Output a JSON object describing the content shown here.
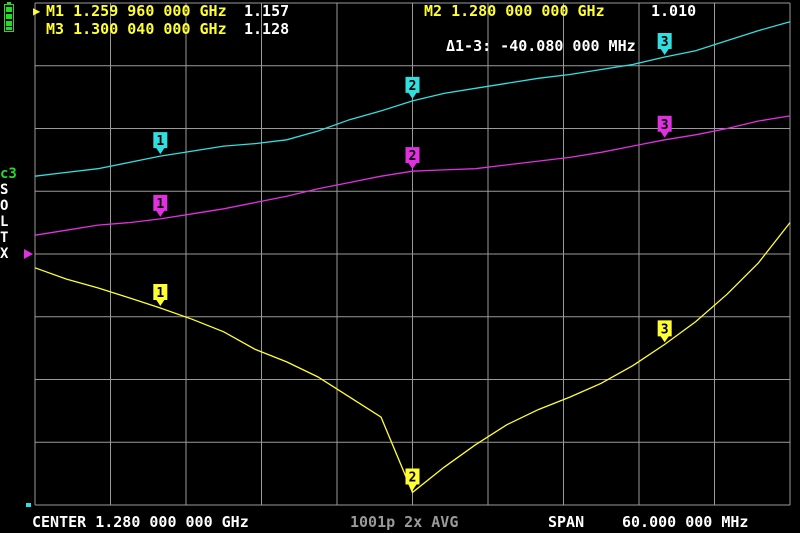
{
  "markers": {
    "m1": {
      "label": "M1 1.259 960 000 GHz",
      "value": "1.157"
    },
    "m2": {
      "label": "M2 1.280 000 000 GHz",
      "value": "1.010"
    },
    "m3": {
      "label": "M3 1.300 040 000 GHz",
      "value": "1.128"
    },
    "delta": "Δ1-3: -40.080 000 MHz",
    "active_indicator": "▶"
  },
  "calibration": {
    "title": "c3",
    "letters": [
      "S",
      "O",
      "L",
      "T",
      "X"
    ]
  },
  "footer": {
    "center": "CENTER 1.280 000 000 GHz",
    "points_avg": "1001p 2x AVG",
    "span_label": "SPAN",
    "span_value": "60.000 000 MHz"
  },
  "colors": {
    "trace1": "#ffff30",
    "trace2": "#30e0e0",
    "trace3": "#e030e0",
    "grid": "#9a9a9a",
    "battery": "#22dd22"
  },
  "chart_data": {
    "type": "line",
    "x_unit": "GHz",
    "xlim": [
      1.25,
      1.31
    ],
    "x": [
      1.25,
      1.2525,
      1.255,
      1.2575,
      1.25996,
      1.2625,
      1.265,
      1.2675,
      1.27,
      1.2725,
      1.275,
      1.2775,
      1.28,
      1.2825,
      1.285,
      1.2875,
      1.29,
      1.2925,
      1.295,
      1.2975,
      1.30004,
      1.3025,
      1.305,
      1.3075,
      1.31
    ],
    "series": [
      {
        "color": "yellow",
        "marker_values": [
          1.157,
          1.01,
          1.128
        ],
        "values": [
          1.189,
          1.18,
          1.173,
          1.165,
          1.157,
          1.148,
          1.138,
          1.124,
          1.114,
          1.102,
          1.086,
          1.07,
          1.01,
          1.03,
          1.048,
          1.064,
          1.076,
          1.086,
          1.097,
          1.111,
          1.128,
          1.146,
          1.168,
          1.193,
          1.225
        ]
      },
      {
        "color": "cyan",
        "values": [
          1.262,
          1.265,
          1.268,
          1.273,
          1.278,
          1.282,
          1.286,
          1.288,
          1.291,
          1.298,
          1.307,
          1.314,
          1.322,
          1.328,
          1.332,
          1.336,
          1.34,
          1.343,
          1.347,
          1.351,
          1.357,
          1.362,
          1.37,
          1.378,
          1.385
        ]
      },
      {
        "color": "magenta",
        "values": [
          1.215,
          1.219,
          1.223,
          1.225,
          1.228,
          1.232,
          1.236,
          1.241,
          1.246,
          1.252,
          1.257,
          1.262,
          1.266,
          1.267,
          1.268,
          1.271,
          1.274,
          1.277,
          1.281,
          1.286,
          1.291,
          1.295,
          1.3,
          1.306,
          1.31
        ]
      }
    ],
    "marker_x": [
      1.25996,
      1.28,
      1.30004
    ],
    "marker_labels": [
      "1",
      "2",
      "3"
    ],
    "ylim": [
      1.0,
      1.4
    ]
  }
}
